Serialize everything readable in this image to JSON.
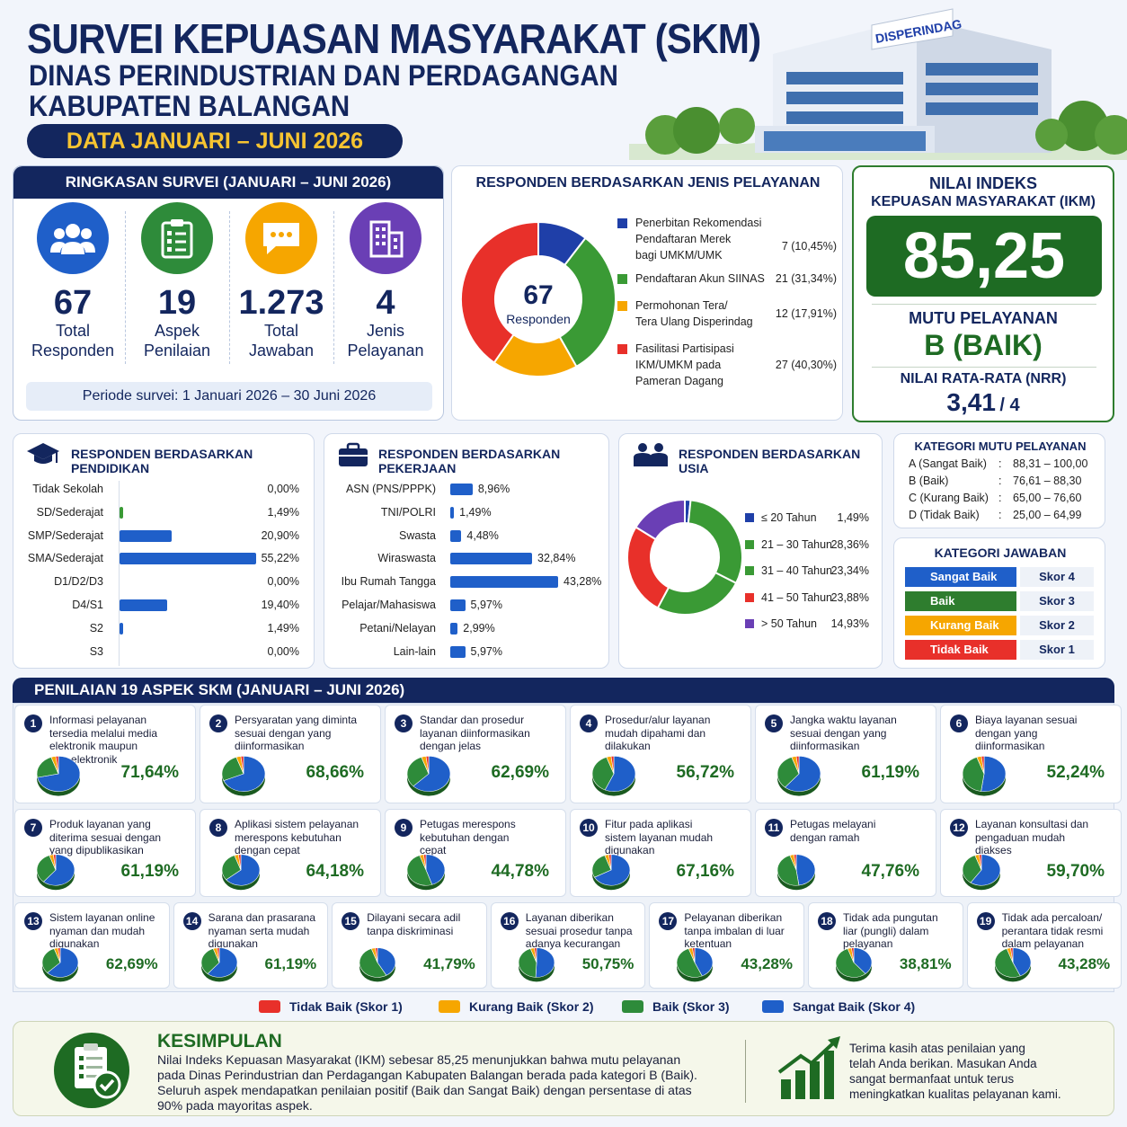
{
  "header": {
    "title": "SURVEI KEPUASAN MASYARAKAT (SKM)",
    "subtitle1": "DINAS PERINDUSTRIAN DAN PERDAGANGAN",
    "subtitle2": "KABUPATEN BALANGAN",
    "period": "DATA JANUARI – JUNI 2026",
    "building_sign": "DISPERINDAG"
  },
  "summary": {
    "title": "RINGKASAN SURVEI (JANUARI – JUNI 2026)",
    "stats": [
      {
        "num": "67",
        "l1": "Total",
        "l2": "Responden",
        "icon": "users-icon",
        "color": "#1f5fc9"
      },
      {
        "num": "19",
        "l1": "Aspek",
        "l2": "Penilaian",
        "icon": "clipboard-icon",
        "color": "#2e8b3a"
      },
      {
        "num": "1.273",
        "l1": "Total",
        "l2": "Jawaban",
        "icon": "chat-icon",
        "color": "#f6a600"
      },
      {
        "num": "4",
        "l1": "Jenis",
        "l2": "Pelayanan",
        "icon": "building-icon",
        "color": "#6a3fb5"
      }
    ],
    "period_note": "Periode survei: 1 Januari 2026 – 30 Juni 2026"
  },
  "service": {
    "title": "RESPONDEN BERDASARKAN JENIS PELAYANAN",
    "center_num": "67",
    "center_lbl": "Responden",
    "items": [
      {
        "l1": "Penerbitan Rekomendasi",
        "l2": "Pendaftaran Merek",
        "l3": "bagi UMKM/UMK",
        "val": "7 (10,45%)",
        "color": "#1f3fa8"
      },
      {
        "l1": "Pendaftaran Akun SIINAS",
        "l2": "",
        "l3": "",
        "val": "21 (31,34%)",
        "color": "#3a9a35"
      },
      {
        "l1": "Permohonan Tera/",
        "l2": "Tera Ulang Disperindag",
        "l3": "",
        "val": "12 (17,91%)",
        "color": "#f6a600"
      },
      {
        "l1": "Fasilitasi Partisipasi",
        "l2": "IKM/UMKM pada",
        "l3": "Pameran Dagang",
        "val": "27 (40,30%)",
        "color": "#e8302a"
      }
    ]
  },
  "ikm": {
    "title1": "NILAI INDEKS",
    "title2": "KEPUASAN MASYARAKAT (IKM)",
    "value": "85,25",
    "mutu_lbl": "MUTU PELAYANAN",
    "mutu": "B (BAIK)",
    "nrr_lbl": "NILAI RATA-RATA (NRR)",
    "nrr": "3,41",
    "nrr_max": "/ 4"
  },
  "pendidikan": {
    "title": "RESPONDEN BERDASARKAN PENDIDIKAN",
    "rows": [
      {
        "l": "Tidak Sekolah",
        "p": "0,00%"
      },
      {
        "l": "SD/Sederajat",
        "p": "1,49%"
      },
      {
        "l": "SMP/Sederajat",
        "p": "20,90%"
      },
      {
        "l": "SMA/Sederajat",
        "p": "55,22%"
      },
      {
        "l": "D1/D2/D3",
        "p": "0,00%"
      },
      {
        "l": "D4/S1",
        "p": "19,40%"
      },
      {
        "l": "S2",
        "p": "1,49%"
      },
      {
        "l": "S3",
        "p": "0,00%"
      }
    ]
  },
  "pekerjaan": {
    "title": "RESPONDEN BERDASARKAN PEKERJAAN",
    "rows": [
      {
        "l": "ASN (PNS/PPPK)",
        "p": "8,96%"
      },
      {
        "l": "TNI/POLRI",
        "p": "1,49%"
      },
      {
        "l": "Swasta",
        "p": "4,48%"
      },
      {
        "l": "Wiraswasta",
        "p": "32,84%"
      },
      {
        "l": "Ibu Rumah Tangga",
        "p": "43,28%"
      },
      {
        "l": "Pelajar/Mahasiswa",
        "p": "5,97%"
      },
      {
        "l": "Petani/Nelayan",
        "p": "2,99%"
      },
      {
        "l": "Lain-lain",
        "p": "5,97%"
      }
    ]
  },
  "usia": {
    "title": "RESPONDEN BERDASARKAN USIA",
    "items": [
      {
        "l": "≤ 20 Tahun",
        "p": "1,49%",
        "color": "#1f3fa8"
      },
      {
        "l": "21 – 30 Tahun",
        "p": "28,36%",
        "color": "#3a9a35"
      },
      {
        "l": "31 – 40 Tahun",
        "p": "23,34%",
        "color": "#3a9a35"
      },
      {
        "l": "41 – 50 Tahun",
        "p": "23,88%",
        "color": "#e8302a"
      },
      {
        "l": "> 50 Tahun",
        "p": "14,93%",
        "color": "#6a3fb5"
      }
    ]
  },
  "kategori_mutu": {
    "title": "KATEGORI MUTU PELAYANAN",
    "rows": [
      {
        "k": "A  (Sangat Baik)",
        "r": "88,31 – 100,00"
      },
      {
        "k": "B  (Baik)",
        "r": "76,61 – 88,30"
      },
      {
        "k": "C  (Kurang Baik)",
        "r": "65,00 – 76,60"
      },
      {
        "k": "D  (Tidak Baik)",
        "r": "25,00 – 64,99"
      }
    ]
  },
  "kategori_jawaban": {
    "title": "KATEGORI JAWABAN",
    "rows": [
      {
        "l": "Sangat Baik",
        "s": "Skor 4",
        "color": "#1f5fc9"
      },
      {
        "l": "Baik",
        "s": "Skor 3",
        "color": "#2e7d2e"
      },
      {
        "l": "Kurang Baik",
        "s": "Skor 2",
        "color": "#f6a600"
      },
      {
        "l": "Tidak Baik",
        "s": "Skor 1",
        "color": "#e8302a"
      }
    ]
  },
  "aspek": {
    "title": "PENILAIAN  19 ASPEK SKM (JANUARI – JUNI 2026)",
    "items": [
      {
        "n": "1",
        "t": [
          "Informasi pelayanan",
          "tersedia melalui media",
          "elektronik maupun",
          "non-elektronik"
        ],
        "p": "71,64%"
      },
      {
        "n": "2",
        "t": [
          "Persyaratan yang diminta",
          "sesuai dengan yang",
          "diinformasikan"
        ],
        "p": "68,66%"
      },
      {
        "n": "3",
        "t": [
          "Standar dan prosedur",
          "layanan diinformasikan",
          "dengan jelas"
        ],
        "p": "62,69%"
      },
      {
        "n": "4",
        "t": [
          "Prosedur/alur layanan",
          "mudah dipahami dan",
          "dilakukan"
        ],
        "p": "56,72%"
      },
      {
        "n": "5",
        "t": [
          "Jangka waktu layanan",
          "sesuai dengan yang",
          "diinformasikan"
        ],
        "p": "61,19%"
      },
      {
        "n": "6",
        "t": [
          "Biaya layanan sesuai",
          "dengan yang",
          "diinformasikan"
        ],
        "p": "52,24%"
      },
      {
        "n": "7",
        "t": [
          "Produk layanan yang",
          "diterima sesuai dengan",
          "yang dipublikasikan"
        ],
        "p": "61,19%"
      },
      {
        "n": "8",
        "t": [
          "Aplikasi sistem pelayanan",
          "merespons kebutuhan",
          "dengan cepat"
        ],
        "p": "64,18%"
      },
      {
        "n": "9",
        "t": [
          "Petugas merespons",
          "kebutuhan dengan",
          "cepat"
        ],
        "p": "44,78%"
      },
      {
        "n": "10",
        "t": [
          "Fitur pada aplikasi",
          "sistem layanan mudah",
          "digunakan"
        ],
        "p": "67,16%"
      },
      {
        "n": "11",
        "t": [
          "Petugas melayani",
          "dengan ramah"
        ],
        "p": "47,76%"
      },
      {
        "n": "12",
        "t": [
          "Layanan konsultasi dan",
          "pengaduan mudah",
          "diakses"
        ],
        "p": "59,70%"
      },
      {
        "n": "13",
        "t": [
          "Sistem layanan online",
          "nyaman dan mudah",
          "digunakan"
        ],
        "p": "62,69%"
      },
      {
        "n": "14",
        "t": [
          "Sarana dan prasarana",
          "nyaman serta mudah",
          "digunakan"
        ],
        "p": "61,19%"
      },
      {
        "n": "15",
        "t": [
          "Dilayani secara adil",
          "tanpa diskriminasi"
        ],
        "p": "41,79%"
      },
      {
        "n": "16",
        "t": [
          "Layanan diberikan",
          "sesuai prosedur tanpa",
          "adanya kecurangan"
        ],
        "p": "50,75%"
      },
      {
        "n": "17",
        "t": [
          "Pelayanan diberikan",
          "tanpa imbalan di luar",
          "ketentuan"
        ],
        "p": "43,28%"
      },
      {
        "n": "18",
        "t": [
          "Tidak ada pungutan",
          "liar (pungli) dalam",
          "pelayanan"
        ],
        "p": "38,81%"
      },
      {
        "n": "19",
        "t": [
          "Tidak ada percaloan/",
          "perantara tidak resmi",
          "dalam pelayanan"
        ],
        "p": "43,28%"
      }
    ]
  },
  "legend": [
    {
      "l": "Tidak Baik (Skor 1)",
      "color": "#e8302a"
    },
    {
      "l": "Kurang Baik (Skor 2)",
      "color": "#f6a600"
    },
    {
      "l": "Baik (Skor 3)",
      "color": "#2e8b3a"
    },
    {
      "l": "Sangat Baik (Skor 4)",
      "color": "#1f5fc9"
    }
  ],
  "kesimpulan": {
    "title": "KESIMPULAN",
    "lines": [
      "Nilai Indeks Kepuasan Masyarakat (IKM) sebesar 85,25 menunjukkan bahwa mutu pelayanan",
      "pada Dinas Perindustrian dan Perdagangan Kabupaten Balangan berada pada kategori B (Baik).",
      "Seluruh aspek mendapatkan penilaian positif (Baik dan Sangat Baik) dengan persentase di atas",
      "90% pada mayoritas aspek."
    ],
    "thanks": [
      "Terima kasih atas penilaian yang",
      "telah Anda berikan. Masukan Anda",
      "sangat bermanfaat untuk terus",
      "meningkatkan kualitas pelayanan kami."
    ]
  },
  "chart_data": [
    {
      "type": "pie",
      "title": "RESPONDEN BERDASARKAN JENIS PELAYANAN",
      "categories": [
        "Penerbitan Rekomendasi Pendaftaran Merek bagi UMKM/UMK",
        "Pendaftaran Akun SIINAS",
        "Permohonan Tera/Tera Ulang Disperindag",
        "Fasilitasi Partisipasi IKM/UMKM pada Pameran Dagang"
      ],
      "values": [
        7,
        21,
        12,
        27
      ]
    },
    {
      "type": "bar",
      "title": "RESPONDEN BERDASARKAN PENDIDIKAN",
      "categories": [
        "Tidak Sekolah",
        "SD/Sederajat",
        "SMP/Sederajat",
        "SMA/Sederajat",
        "D1/D2/D3",
        "D4/S1",
        "S2",
        "S3"
      ],
      "values": [
        0,
        1.49,
        20.9,
        55.22,
        0,
        19.4,
        1.49,
        0
      ]
    },
    {
      "type": "bar",
      "title": "RESPONDEN BERDASARKAN PEKERJAAN",
      "categories": [
        "ASN (PNS/PPPK)",
        "TNI/POLRI",
        "Swasta",
        "Wiraswasta",
        "Ibu Rumah Tangga",
        "Pelajar/Mahasiswa",
        "Petani/Nelayan",
        "Lain-lain"
      ],
      "values": [
        8.96,
        1.49,
        4.48,
        32.84,
        43.28,
        5.97,
        2.99,
        5.97
      ]
    },
    {
      "type": "pie",
      "title": "RESPONDEN BERDASARKAN USIA",
      "categories": [
        "≤ 20 Tahun",
        "21 – 30 Tahun",
        "31 – 40 Tahun",
        "41 – 50 Tahun",
        "> 50 Tahun"
      ],
      "values": [
        1.49,
        28.36,
        23.34,
        23.88,
        14.93
      ]
    },
    {
      "type": "pie",
      "title": "PENILAIAN  19 ASPEK SKM (JANUARI – JUNI 2026)",
      "categories": [
        "Aspek 1",
        "Aspek 2",
        "Aspek 3",
        "Aspek 4",
        "Aspek 5",
        "Aspek 6",
        "Aspek 7",
        "Aspek 8",
        "Aspek 9",
        "Aspek 10",
        "Aspek 11",
        "Aspek 12",
        "Aspek 13",
        "Aspek 14",
        "Aspek 15",
        "Aspek 16",
        "Aspek 17",
        "Aspek 18",
        "Aspek 19"
      ],
      "series": [
        {
          "name": "Sangat Baik (Skor 4)",
          "values": [
            71.64,
            68.66,
            62.69,
            56.72,
            61.19,
            52.24,
            61.19,
            64.18,
            44.78,
            67.16,
            47.76,
            59.7,
            62.69,
            61.19,
            41.79,
            50.75,
            43.28,
            38.81,
            43.28
          ]
        }
      ]
    }
  ]
}
